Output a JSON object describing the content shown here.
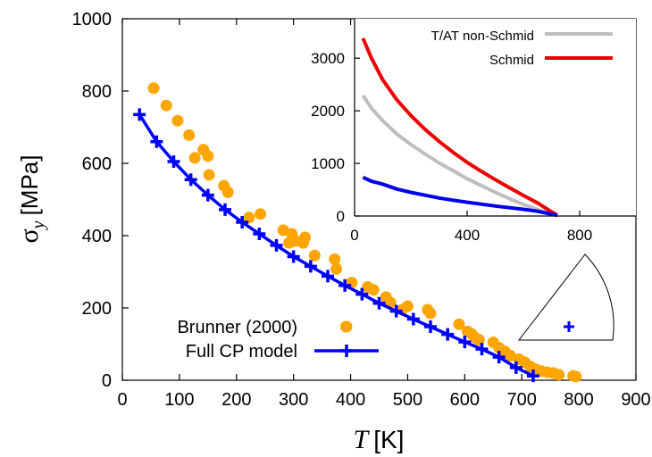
{
  "chart_data": [
    {
      "type": "scatter+line",
      "xlabel": {
        "symbol": "T",
        "unit": "[K]"
      },
      "ylabel": {
        "symbol": "σ",
        "subscript": "y",
        "unit": "[MPa]"
      },
      "xlim": [
        0,
        900
      ],
      "ylim": [
        0,
        1000
      ],
      "xticks": [
        "0",
        "100",
        "200",
        "300",
        "400",
        "500",
        "600",
        "700",
        "800",
        "900"
      ],
      "yticks": [
        "0",
        "200",
        "400",
        "600",
        "800",
        "1000"
      ],
      "legend_position": "bottom-left",
      "series": [
        {
          "name": "Brunner (2000)",
          "kind": "scatter",
          "color": "#FFA500",
          "x": [
            55,
            77,
            97,
            117,
            127,
            142,
            150,
            152,
            178,
            185,
            222,
            242,
            282,
            292,
            297,
            303,
            317,
            320,
            337,
            372,
            375,
            392,
            402,
            430,
            440,
            462,
            470,
            490,
            500,
            535,
            540,
            590,
            605,
            612,
            618,
            625,
            650,
            660,
            670,
            680,
            695,
            705,
            715,
            725,
            735,
            745,
            755,
            765,
            790,
            795
          ],
          "y": [
            808,
            760,
            718,
            678,
            615,
            638,
            620,
            568,
            538,
            520,
            450,
            460,
            415,
            380,
            405,
            385,
            380,
            395,
            345,
            335,
            308,
            148,
            270,
            258,
            250,
            230,
            215,
            195,
            205,
            195,
            185,
            155,
            135,
            128,
            118,
            112,
            105,
            90,
            80,
            68,
            58,
            50,
            38,
            30,
            25,
            22,
            20,
            15,
            12,
            10
          ]
        },
        {
          "name": "Full CP model",
          "kind": "line+markers",
          "color": "#0000FF",
          "x": [
            30,
            60,
            90,
            120,
            150,
            180,
            210,
            240,
            270,
            300,
            330,
            360,
            390,
            420,
            450,
            480,
            510,
            540,
            570,
            600,
            630,
            660,
            690,
            720
          ],
          "y": [
            735,
            660,
            605,
            555,
            512,
            472,
            437,
            405,
            373,
            342,
            315,
            288,
            262,
            238,
            213,
            191,
            169,
            148,
            127,
            106,
            86,
            64,
            35,
            12
          ]
        }
      ]
    },
    {
      "type": "line",
      "xlim": [
        0,
        1000
      ],
      "ylim": [
        0,
        3750
      ],
      "xticks": [
        "0",
        "400",
        "800"
      ],
      "yticks": [
        "0",
        "1000",
        "2000",
        "3000"
      ],
      "legend_position": "top-right",
      "series": [
        {
          "name": "T/AT non-Schmid",
          "color": "#BEBEBE",
          "x": [
            30,
            60,
            100,
            150,
            200,
            250,
            300,
            350,
            400,
            450,
            500,
            550,
            600,
            650,
            700,
            720
          ],
          "y": [
            2290,
            2050,
            1810,
            1560,
            1360,
            1180,
            1010,
            860,
            710,
            580,
            450,
            330,
            220,
            120,
            40,
            10
          ]
        },
        {
          "name": "Schmid",
          "color": "#EE0000",
          "x": [
            30,
            60,
            100,
            150,
            200,
            250,
            300,
            350,
            400,
            450,
            500,
            550,
            600,
            650,
            700,
            720
          ],
          "y": [
            3380,
            3000,
            2590,
            2210,
            1910,
            1650,
            1420,
            1210,
            1020,
            850,
            690,
            540,
            390,
            250,
            80,
            15
          ]
        },
        {
          "name": "",
          "color": "#0000EE",
          "x": [
            30,
            60,
            100,
            150,
            200,
            250,
            300,
            350,
            400,
            450,
            500,
            550,
            600,
            650,
            700,
            720
          ],
          "y": [
            735,
            660,
            605,
            512,
            450,
            395,
            342,
            300,
            262,
            225,
            190,
            158,
            127,
            90,
            35,
            12
          ]
        }
      ]
    }
  ]
}
